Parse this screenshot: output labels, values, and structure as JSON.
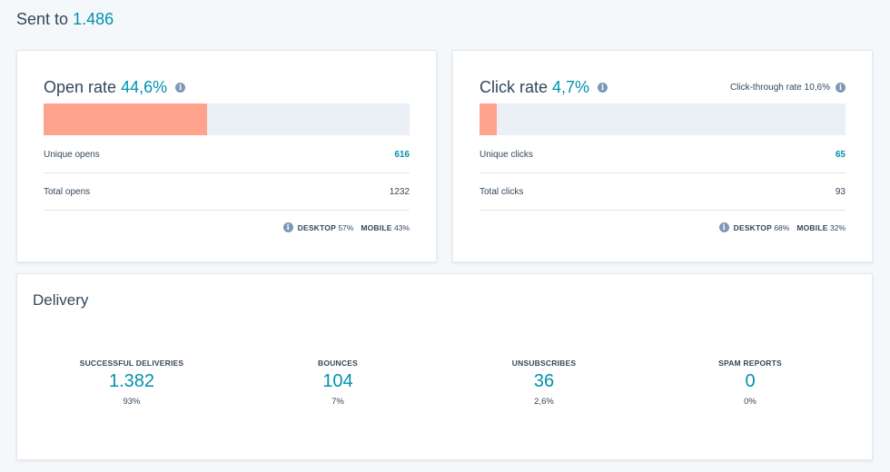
{
  "header": {
    "label": "Sent to",
    "count": "1.486"
  },
  "open_card": {
    "title": "Open rate",
    "rate": "44,6%",
    "bar_fill_fraction": 0.446,
    "rows": [
      {
        "label": "Unique opens",
        "value": "616"
      },
      {
        "label": "Total opens",
        "value": "1232"
      }
    ],
    "devices": [
      {
        "name": "DESKTOP",
        "value": "57%"
      },
      {
        "name": "MOBILE",
        "value": "43%"
      }
    ]
  },
  "click_card": {
    "title": "Click rate",
    "rate": "4,7%",
    "bar_fill_fraction": 0.047,
    "ctr_label": "Click-through rate",
    "ctr_value": "10,6%",
    "rows": [
      {
        "label": "Unique clicks",
        "value": "65"
      },
      {
        "label": "Total clicks",
        "value": "93"
      }
    ],
    "devices": [
      {
        "name": "DESKTOP",
        "value": "68%"
      },
      {
        "name": "MOBILE",
        "value": "32%"
      }
    ]
  },
  "delivery": {
    "title": "Delivery",
    "metrics": [
      {
        "label": "SUCCESSFUL DELIVERIES",
        "value": "1.382",
        "percent": "93%"
      },
      {
        "label": "BOUNCES",
        "value": "104",
        "percent": "7%"
      },
      {
        "label": "UNSUBSCRIBES",
        "value": "36",
        "percent": "2,6%"
      },
      {
        "label": "SPAM REPORTS",
        "value": "0",
        "percent": "0%"
      }
    ]
  },
  "colors": {
    "accent": "#0091ae",
    "bar_fill": "#ffa38c",
    "bar_track": "#eaf0f6",
    "text": "#33475b"
  }
}
